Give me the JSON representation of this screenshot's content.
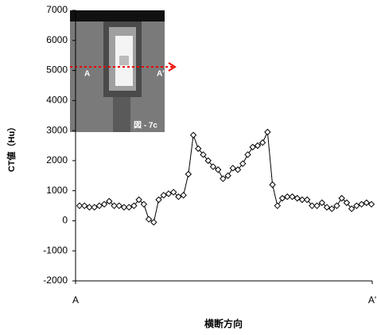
{
  "chart_data": {
    "type": "line",
    "y_label": "CT値（Hu）",
    "x_label": "横断方向",
    "categories": [
      "A",
      null,
      null,
      null,
      null,
      null,
      null,
      null,
      null,
      null,
      null,
      null,
      null,
      null,
      null,
      null,
      null,
      null,
      null,
      null,
      null,
      null,
      null,
      null,
      null,
      null,
      null,
      null,
      null,
      null,
      null,
      null,
      null,
      null,
      null,
      null,
      null,
      null,
      null,
      null,
      null,
      null,
      null,
      null,
      null,
      null,
      null,
      null,
      null,
      null,
      null,
      null,
      null,
      null,
      null,
      null,
      null,
      null,
      null,
      "A'"
    ],
    "values": [
      500,
      500,
      450,
      450,
      500,
      550,
      650,
      500,
      500,
      450,
      450,
      500,
      700,
      550,
      50,
      -50,
      700,
      850,
      900,
      950,
      800,
      850,
      1550,
      2850,
      2400,
      2200,
      2000,
      1800,
      1700,
      1400,
      1500,
      1750,
      1700,
      1900,
      2200,
      2450,
      2500,
      2600,
      2950,
      1200,
      500,
      750,
      800,
      800,
      750,
      700,
      700,
      500,
      500,
      600,
      450,
      400,
      500,
      750,
      600,
      400,
      500,
      550,
      600,
      550
    ],
    "color": "#000000",
    "ylim": [
      -2000,
      7000
    ],
    "yticks": [
      -2000,
      -1000,
      0,
      1000,
      2000,
      3000,
      4000,
      5000,
      6000,
      7000
    ],
    "inset": {
      "left_label": "A",
      "right_label": "A'",
      "caption": "図 - 7c"
    }
  }
}
